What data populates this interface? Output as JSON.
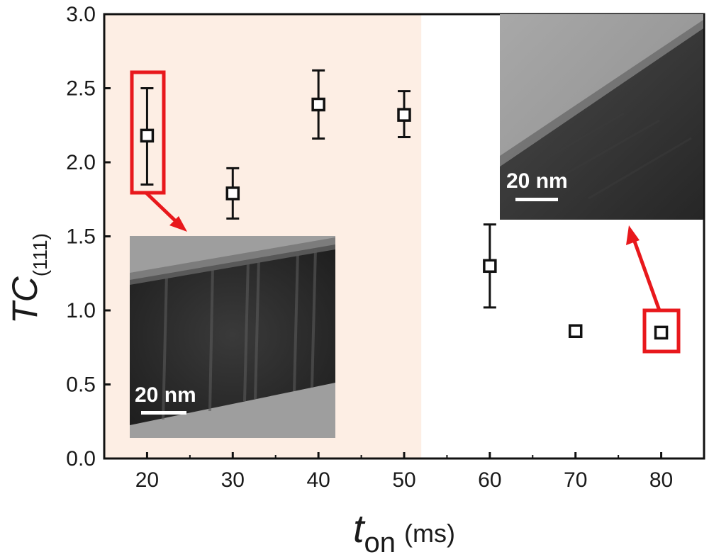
{
  "chart_data": {
    "type": "scatter",
    "title": "",
    "x_axis": {
      "label_main": "t",
      "label_sub": "on",
      "label_unit": "(ms)",
      "range": [
        15,
        85
      ],
      "ticks": [
        20,
        30,
        40,
        50,
        60,
        70,
        80
      ]
    },
    "y_axis": {
      "label_main": "TC",
      "label_sub": "(111)",
      "range": [
        0.0,
        3.0
      ],
      "ticks": [
        "0.0",
        "0.5",
        "1.0",
        "1.5",
        "2.0",
        "2.5",
        "3.0"
      ]
    },
    "shaded_region": {
      "x_range": [
        15,
        52
      ],
      "color": "#fdeee4"
    },
    "marker": "open-square",
    "series": [
      {
        "points": [
          {
            "x": 20,
            "y": 2.18,
            "err_low": 1.85,
            "err_high": 2.5
          },
          {
            "x": 30,
            "y": 1.79,
            "err_low": 1.62,
            "err_high": 1.96
          },
          {
            "x": 40,
            "y": 2.39,
            "err_low": 2.16,
            "err_high": 2.62
          },
          {
            "x": 50,
            "y": 2.32,
            "err_low": 2.17,
            "err_high": 2.48
          },
          {
            "x": 60,
            "y": 1.3,
            "err_low": 1.02,
            "err_high": 1.58
          },
          {
            "x": 70,
            "y": 0.86,
            "err_low": 0.83,
            "err_high": 0.89
          },
          {
            "x": 80,
            "y": 0.85,
            "err_low": 0.84,
            "err_high": 0.86
          }
        ]
      }
    ],
    "highlighted_points": [
      20,
      80
    ],
    "highlight_color": "#e8181c",
    "insets": [
      {
        "linked_x": 20,
        "scale_bar": "20 nm",
        "kind": "TEM micrograph"
      },
      {
        "linked_x": 80,
        "scale_bar": "20 nm",
        "kind": "TEM micrograph"
      }
    ]
  }
}
